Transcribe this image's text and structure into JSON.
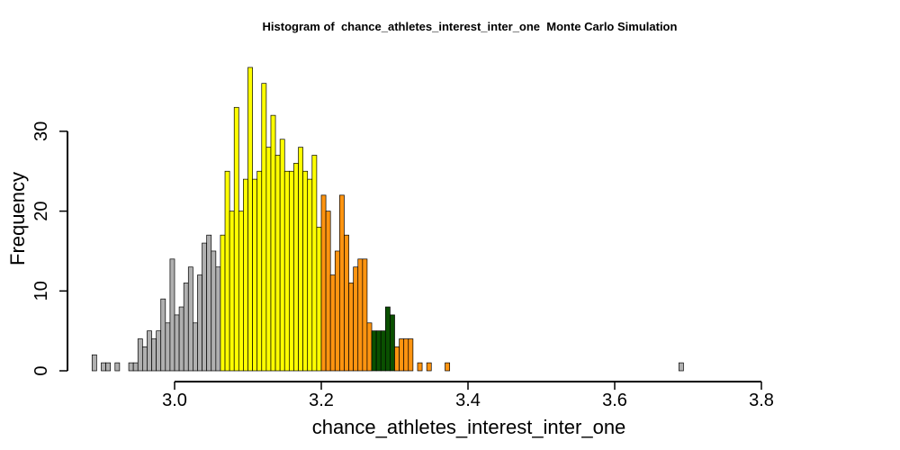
{
  "chart_data": {
    "type": "bar",
    "title": "Histogram of  chance_athletes_interest_inter_one  Monte Carlo Simulation",
    "xlabel": "chance_athletes_interest_inter_one",
    "ylabel": "Frequency",
    "xlim": [
      2.895,
      3.91
    ],
    "ylim": [
      0,
      38
    ],
    "xticks": [
      3.0,
      3.2,
      3.4,
      3.6,
      3.8
    ],
    "yticks": [
      0,
      10,
      20,
      30
    ],
    "grid": false,
    "legend": "none",
    "bin_width": 0.00625,
    "bin_start": 2.8875,
    "colors": {
      "tail": "#b0b0b0",
      "outer": "#ffff00",
      "inner": "#ff9410",
      "center": "#0a5000",
      "border": "#000000"
    },
    "color_bands": [
      {
        "from": 2.8875,
        "to": 3.0625,
        "color": "tail"
      },
      {
        "from": 3.0625,
        "to": 3.2,
        "color": "outer"
      },
      {
        "from": 3.2,
        "to": 3.26875,
        "color": "inner"
      },
      {
        "from": 3.26875,
        "to": 3.3,
        "color": "center"
      },
      {
        "from": 3.3,
        "to": 3.4125,
        "color": "inner"
      },
      {
        "from": 3.4125,
        "to": 3.5125,
        "color": "outer"
      },
      {
        "from": 3.5125,
        "to": 3.9125,
        "color": "tail"
      }
    ],
    "values": [
      2,
      0,
      1,
      1,
      0,
      1,
      0,
      0,
      1,
      1,
      4,
      3,
      5,
      4,
      5,
      9,
      6,
      14,
      7,
      8,
      11,
      13,
      6,
      12,
      16,
      17,
      15,
      13,
      17,
      25,
      20,
      33,
      20,
      24,
      38,
      24,
      25,
      36,
      28,
      32,
      27,
      29,
      25,
      25,
      26,
      28,
      25,
      24,
      27,
      18,
      22,
      20,
      12,
      15,
      22,
      17,
      11,
      13,
      14,
      14,
      6,
      5,
      5,
      5,
      8,
      7,
      3,
      4,
      4,
      4,
      0,
      1,
      0,
      1,
      0,
      0,
      0,
      1,
      0,
      0,
      0,
      0,
      0,
      0,
      0,
      0,
      0,
      0,
      0,
      0,
      0,
      0,
      0,
      0,
      0,
      0,
      0,
      0,
      0,
      0,
      0,
      0,
      0,
      0,
      0,
      0,
      0,
      0,
      0,
      0,
      0,
      0,
      0,
      0,
      0,
      0,
      0,
      0,
      0,
      0,
      0,
      0,
      0,
      0,
      0,
      0,
      0,
      0,
      1
    ]
  }
}
